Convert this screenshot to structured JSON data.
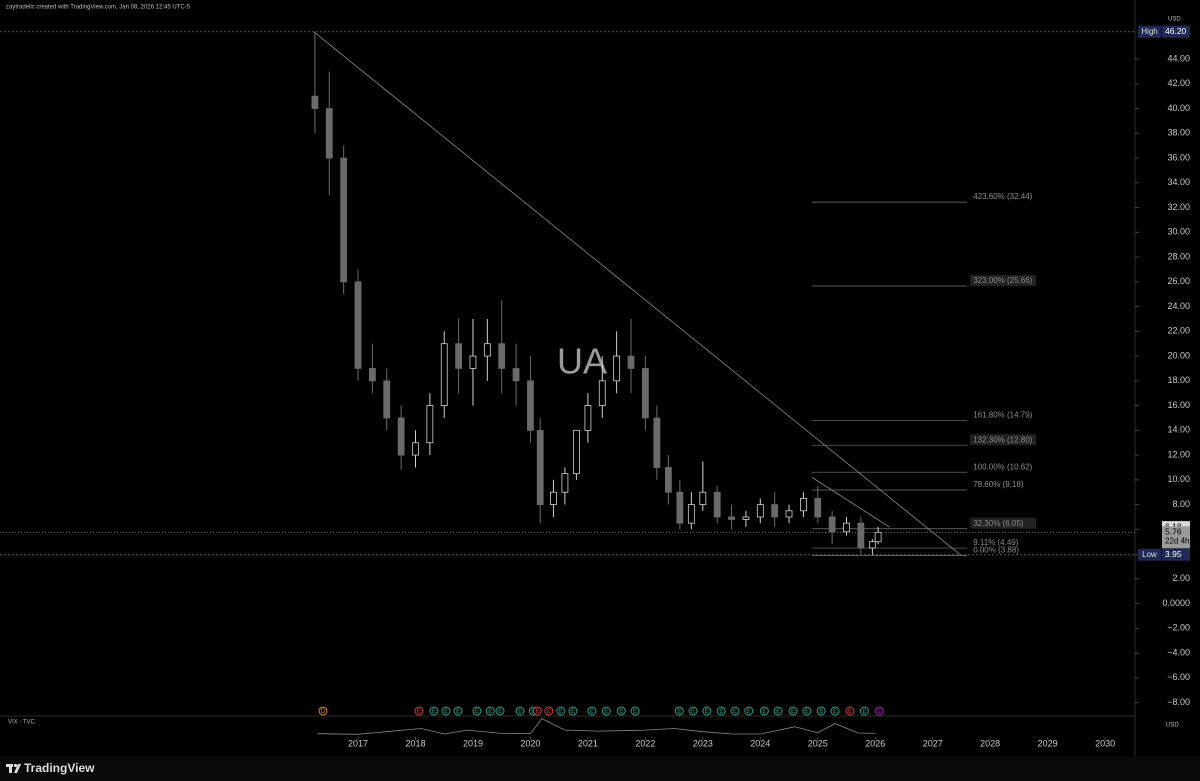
{
  "chart_data": {
    "type": "candlestick",
    "header": "zaytradellc created with TradingView.com, Jan 08, 2026 12:45 UTC-5",
    "symbol": "UA",
    "currency": "USD",
    "brand": "TradingView",
    "up_color": "#d0d0d0",
    "down_color": "#6a6a6a",
    "xlim": [
      2010.77,
      2030.52
    ],
    "xticks": [
      2017,
      2018,
      2019,
      2020,
      2021,
      2022,
      2023,
      2024,
      2025,
      2026,
      2027,
      2028,
      2029,
      2030
    ],
    "ylim": [
      -9,
      48.77
    ],
    "yticks": [
      {
        "value": -8,
        "label": "−8.00"
      },
      {
        "value": -6,
        "label": "−6.00"
      },
      {
        "value": -4,
        "label": "−4.00"
      },
      {
        "value": -2,
        "label": "−2.00"
      },
      {
        "value": 0,
        "label": "0.0000"
      },
      {
        "value": 2,
        "label": "2.00"
      },
      {
        "value": 4,
        "label": "4.00"
      },
      {
        "value": 6,
        "label": "6.00"
      },
      {
        "value": 8,
        "label": "8.00"
      },
      {
        "value": 10,
        "label": "10.00"
      },
      {
        "value": 12,
        "label": "12.00"
      },
      {
        "value": 14,
        "label": "14.00"
      },
      {
        "value": 16,
        "label": "16.00"
      },
      {
        "value": 18,
        "label": "18.00"
      },
      {
        "value": 20,
        "label": "20.00"
      },
      {
        "value": 22,
        "label": "22.00"
      },
      {
        "value": 24,
        "label": "24.00"
      },
      {
        "value": 26,
        "label": "26.00"
      },
      {
        "value": 28,
        "label": "28.00"
      },
      {
        "value": 30,
        "label": "30.00"
      },
      {
        "value": 32,
        "label": "32.00"
      },
      {
        "value": 34,
        "label": "34.00"
      },
      {
        "value": 36,
        "label": "36.00"
      },
      {
        "value": 38,
        "label": "38.00"
      },
      {
        "value": 40,
        "label": "40.00"
      },
      {
        "value": 42,
        "label": "42.00"
      },
      {
        "value": 44,
        "label": "44.00"
      }
    ],
    "x": [
      2016.25,
      2016.5,
      2016.75,
      2017.0,
      2017.25,
      2017.5,
      2017.75,
      2018.0,
      2018.25,
      2018.5,
      2018.75,
      2019.0,
      2019.25,
      2019.5,
      2019.75,
      2020.0,
      2020.17,
      2020.4,
      2020.6,
      2020.8,
      2021.0,
      2021.25,
      2021.5,
      2021.75,
      2022.0,
      2022.2,
      2022.4,
      2022.6,
      2022.8,
      2023.0,
      2023.25,
      2023.5,
      2023.75,
      2024.0,
      2024.25,
      2024.5,
      2024.75,
      2025.0,
      2025.25,
      2025.5,
      2025.75,
      2025.95,
      2026.05
    ],
    "open": [
      41,
      40,
      36,
      26,
      19,
      18,
      15,
      12,
      13,
      16,
      21,
      19,
      20,
      21,
      19,
      18,
      14,
      8,
      9,
      10.5,
      14,
      16,
      18,
      20,
      19,
      15,
      11,
      9,
      6.5,
      8,
      9,
      7,
      6.8,
      7,
      8,
      7,
      7.5,
      8.5,
      7,
      5.8,
      6.5,
      4.5,
      5
    ],
    "high": [
      46.2,
      43,
      37,
      27,
      21,
      19,
      16,
      14,
      17,
      22,
      23,
      23,
      23,
      24.5,
      21,
      20,
      15,
      10,
      11,
      14,
      17,
      20,
      22,
      23,
      20,
      16,
      12,
      10,
      9,
      11.5,
      9.5,
      8,
      7.5,
      8.5,
      9,
      8,
      9,
      9.5,
      7.5,
      7,
      7,
      5.2,
      6.2
    ],
    "low": [
      38,
      33,
      25,
      18,
      17,
      14,
      10.8,
      11,
      12,
      15,
      17,
      16,
      18,
      17,
      16,
      13,
      6.5,
      7,
      8,
      10,
      13,
      15,
      17,
      17,
      14,
      10,
      8,
      6,
      6,
      7.5,
      6.5,
      6,
      6.2,
      6.5,
      6.2,
      6.5,
      7,
      6.5,
      4.8,
      5.5,
      4,
      3.95,
      4.8
    ],
    "close": [
      40,
      36,
      26,
      19,
      18,
      15,
      12,
      13,
      16,
      21,
      19,
      20,
      21,
      19,
      18,
      14,
      8,
      9,
      10.5,
      14,
      16,
      18,
      20,
      19,
      15,
      11,
      9,
      6.5,
      8,
      9,
      7,
      6.8,
      7,
      8,
      7,
      7.5,
      8.5,
      7,
      5.8,
      6.5,
      4.5,
      5,
      5.76
    ],
    "high_tag": {
      "label": "High",
      "value": 46.2,
      "value_label": "46.20"
    },
    "low_tag": {
      "label": "Low",
      "value": 3.95,
      "value_label": "3.95"
    },
    "price_tags": [
      {
        "value": 6.18,
        "value_label": "6.18",
        "color": "#d8d8d8"
      },
      {
        "value": 5.76,
        "value_label": "5.76",
        "countdown": "22d 4h",
        "color": "#9a9a9a"
      }
    ],
    "trendlines": [
      {
        "x": [
          2016.23,
          2027.48
        ],
        "y": [
          46.2,
          3.95
        ]
      },
      {
        "x": [
          2024.9,
          2026.25
        ],
        "y": [
          10.2,
          6.18
        ]
      }
    ],
    "fib_range": [
      2024.9,
      2027.6
    ],
    "fib": [
      {
        "value": 32.44,
        "label": "423.60% (32.44)"
      },
      {
        "value": 25.66,
        "label": "323.00% (25.66)",
        "boxed": true
      },
      {
        "value": 14.79,
        "label": "161.80% (14.79)"
      },
      {
        "value": 12.8,
        "label": "132.30% (12.80)",
        "boxed": true
      },
      {
        "value": 10.62,
        "label": "100.00% (10.62)"
      },
      {
        "value": 9.18,
        "label": "78.60% (9.18)"
      },
      {
        "value": 6.05,
        "label": "32.30% (6.05)",
        "boxed": true
      },
      {
        "value": 4.49,
        "label": "9.11% (4.49)"
      },
      {
        "value": 3.88,
        "label": "0.00% (3.88)"
      }
    ],
    "events": [
      {
        "x": 2016.39,
        "label": "D",
        "color": "#e08a2a"
      },
      {
        "x": 2018.06,
        "label": "E",
        "color": "#d04040"
      },
      {
        "x": 2018.32,
        "label": "E",
        "color": "#2e9e8a"
      },
      {
        "x": 2018.53,
        "label": "E",
        "color": "#2e9e8a"
      },
      {
        "x": 2018.74,
        "label": "E",
        "color": "#2e9e8a"
      },
      {
        "x": 2019.07,
        "label": "E",
        "color": "#2e9e8a"
      },
      {
        "x": 2019.3,
        "label": "E",
        "color": "#2e9e8a"
      },
      {
        "x": 2019.47,
        "label": "E",
        "color": "#2e9e8a"
      },
      {
        "x": 2019.82,
        "label": "E",
        "color": "#2e9e8a"
      },
      {
        "x": 2020.05,
        "label": "E",
        "color": "#2e9e8a"
      },
      {
        "x": 2020.12,
        "label": "E",
        "color": "#d04040"
      },
      {
        "x": 2020.32,
        "label": "E",
        "color": "#d04040"
      },
      {
        "x": 2020.53,
        "label": "E",
        "color": "#2e9e8a"
      },
      {
        "x": 2020.74,
        "label": "E",
        "color": "#2e9e8a"
      },
      {
        "x": 2021.07,
        "label": "E",
        "color": "#2e9e8a"
      },
      {
        "x": 2021.32,
        "label": "E",
        "color": "#2e9e8a"
      },
      {
        "x": 2021.58,
        "label": "E",
        "color": "#2e9e8a"
      },
      {
        "x": 2021.82,
        "label": "E",
        "color": "#2e9e8a"
      },
      {
        "x": 2022.59,
        "label": "E",
        "color": "#2e9e8a"
      },
      {
        "x": 2022.83,
        "label": "E",
        "color": "#2e9e8a"
      },
      {
        "x": 2023.07,
        "label": "E",
        "color": "#2e9e8a"
      },
      {
        "x": 2023.32,
        "label": "E",
        "color": "#2e9e8a"
      },
      {
        "x": 2023.56,
        "label": "E",
        "color": "#2e9e8a"
      },
      {
        "x": 2023.8,
        "label": "E",
        "color": "#2e9e8a"
      },
      {
        "x": 2024.07,
        "label": "E",
        "color": "#2e9e8a"
      },
      {
        "x": 2024.31,
        "label": "E",
        "color": "#2e9e8a"
      },
      {
        "x": 2024.57,
        "label": "E",
        "color": "#2e9e8a"
      },
      {
        "x": 2024.81,
        "label": "E",
        "color": "#2e9e8a"
      },
      {
        "x": 2025.06,
        "label": "E",
        "color": "#2e9e8a"
      },
      {
        "x": 2025.3,
        "label": "E",
        "color": "#2e9e8a"
      },
      {
        "x": 2025.56,
        "label": "E",
        "color": "#d04040"
      },
      {
        "x": 2025.81,
        "label": "E",
        "color": "#2e9e8a"
      },
      {
        "x": 2026.07,
        "label": "E",
        "color": "#9c27b0"
      }
    ],
    "vix": {
      "label": "VIX · TVC",
      "currency": "USD",
      "ylim": [
        10,
        65
      ],
      "x": [
        2016.3,
        2017.0,
        2018.1,
        2018.5,
        2018.9,
        2019.5,
        2020.0,
        2020.2,
        2020.6,
        2021.2,
        2022.0,
        2022.5,
        2023.0,
        2023.5,
        2024.0,
        2024.6,
        2025.0,
        2025.3,
        2025.7,
        2026.0
      ],
      "values": [
        14,
        12,
        30,
        13,
        25,
        15,
        14,
        60,
        25,
        22,
        25,
        30,
        20,
        13,
        13,
        35,
        17,
        45,
        16,
        15
      ]
    }
  }
}
